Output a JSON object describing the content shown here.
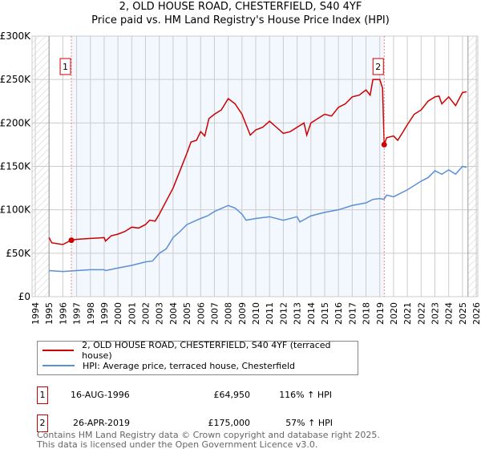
{
  "chart_data": {
    "type": "line",
    "title": "2, OLD HOUSE ROAD, CHESTERFIELD, S40 4YF",
    "subtitle": "Price paid vs. HM Land Registry's House Price Index (HPI)",
    "xlim": [
      1994,
      2026
    ],
    "ylim": [
      0,
      300000
    ],
    "yticks": [
      0,
      50000,
      100000,
      150000,
      200000,
      250000,
      300000
    ],
    "ytick_labels": [
      "£0",
      "£50K",
      "£100K",
      "£150K",
      "£200K",
      "£250K",
      "£300K"
    ],
    "xticks": [
      1994,
      1995,
      1996,
      1997,
      1998,
      1999,
      2000,
      2001,
      2002,
      2003,
      2004,
      2005,
      2006,
      2007,
      2008,
      2009,
      2010,
      2011,
      2012,
      2013,
      2014,
      2015,
      2016,
      2017,
      2018,
      2019,
      2020,
      2021,
      2022,
      2023,
      2024,
      2025,
      2026
    ],
    "grid": true,
    "series": [
      {
        "name": "2, OLD HOUSE ROAD, CHESTERFIELD, S40 4YF (terraced house)",
        "color": "#cc0000",
        "points": [
          [
            1995,
            68
          ],
          [
            1995.2,
            62
          ],
          [
            1996,
            60
          ],
          [
            1996.6,
            65
          ],
          [
            1997,
            66
          ],
          [
            1998,
            67
          ],
          [
            1999,
            68
          ],
          [
            1999.1,
            64
          ],
          [
            1999.5,
            70
          ],
          [
            2000,
            72
          ],
          [
            2000.5,
            75
          ],
          [
            2001,
            80
          ],
          [
            2001.5,
            79
          ],
          [
            2002,
            83
          ],
          [
            2002.3,
            88
          ],
          [
            2002.7,
            87
          ],
          [
            2003,
            95
          ],
          [
            2003.5,
            110
          ],
          [
            2004,
            125
          ],
          [
            2004.5,
            145
          ],
          [
            2005,
            165
          ],
          [
            2005.3,
            178
          ],
          [
            2005.7,
            180
          ],
          [
            2006,
            190
          ],
          [
            2006.3,
            185
          ],
          [
            2006.6,
            205
          ],
          [
            2007,
            210
          ],
          [
            2007.5,
            215
          ],
          [
            2008,
            228
          ],
          [
            2008.5,
            222
          ],
          [
            2009,
            210
          ],
          [
            2009.3,
            198
          ],
          [
            2009.6,
            186
          ],
          [
            2010,
            192
          ],
          [
            2010.5,
            195
          ],
          [
            2011,
            202
          ],
          [
            2011.5,
            195
          ],
          [
            2012,
            188
          ],
          [
            2012.5,
            190
          ],
          [
            2013,
            195
          ],
          [
            2013.5,
            200
          ],
          [
            2013.7,
            186
          ],
          [
            2014,
            200
          ],
          [
            2014.5,
            205
          ],
          [
            2015,
            210
          ],
          [
            2015.5,
            208
          ],
          [
            2016,
            218
          ],
          [
            2016.5,
            222
          ],
          [
            2017,
            230
          ],
          [
            2017.5,
            232
          ],
          [
            2018,
            238
          ],
          [
            2018.3,
            232
          ],
          [
            2018.5,
            250
          ],
          [
            2019,
            250
          ],
          [
            2019.2,
            240
          ],
          [
            2019.32,
            175
          ],
          [
            2019.5,
            183
          ],
          [
            2020,
            185
          ],
          [
            2020.3,
            180
          ],
          [
            2020.7,
            190
          ],
          [
            2021,
            198
          ],
          [
            2021.5,
            210
          ],
          [
            2022,
            215
          ],
          [
            2022.5,
            225
          ],
          [
            2023,
            230
          ],
          [
            2023.3,
            231
          ],
          [
            2023.5,
            222
          ],
          [
            2024,
            230
          ],
          [
            2024.5,
            220
          ],
          [
            2025,
            235
          ],
          [
            2025.3,
            236
          ]
        ]
      },
      {
        "name": "HPI: Average price, terraced house, Chesterfield",
        "color": "#5b8fd6",
        "points": [
          [
            1995,
            30
          ],
          [
            1996,
            29
          ],
          [
            1997,
            30
          ],
          [
            1998,
            31
          ],
          [
            1999,
            31
          ],
          [
            1999.1,
            30
          ],
          [
            2000,
            33
          ],
          [
            2001,
            36
          ],
          [
            2002,
            40
          ],
          [
            2002.5,
            41
          ],
          [
            2003,
            50
          ],
          [
            2003.5,
            55
          ],
          [
            2004,
            68
          ],
          [
            2004.5,
            75
          ],
          [
            2005,
            83
          ],
          [
            2006,
            90
          ],
          [
            2006.5,
            93
          ],
          [
            2007,
            98
          ],
          [
            2008,
            105
          ],
          [
            2008.5,
            102
          ],
          [
            2009,
            95
          ],
          [
            2009.3,
            88
          ],
          [
            2010,
            90
          ],
          [
            2011,
            92
          ],
          [
            2012,
            88
          ],
          [
            2013,
            92
          ],
          [
            2013.2,
            86
          ],
          [
            2014,
            93
          ],
          [
            2015,
            97
          ],
          [
            2016,
            100
          ],
          [
            2017,
            105
          ],
          [
            2018,
            108
          ],
          [
            2018.5,
            112
          ],
          [
            2019,
            113
          ],
          [
            2019.3,
            112
          ],
          [
            2019.5,
            117
          ],
          [
            2020,
            115
          ],
          [
            2021,
            123
          ],
          [
            2022,
            133
          ],
          [
            2022.5,
            137
          ],
          [
            2023,
            145
          ],
          [
            2023.5,
            141
          ],
          [
            2024,
            146
          ],
          [
            2024.5,
            141
          ],
          [
            2025,
            150
          ],
          [
            2025.3,
            149
          ]
        ]
      }
    ],
    "point_units": "thousands GBP",
    "sales": [
      {
        "label": "1",
        "x": 1996.62,
        "y": 64950,
        "date": "16-AUG-1996",
        "price": "£64,950",
        "hpi": "116% ↑ HPI"
      },
      {
        "label": "2",
        "x": 2019.32,
        "y": 175000,
        "date": "26-APR-2019",
        "price": "£175,000",
        "hpi": "57% ↑ HPI"
      }
    ]
  },
  "footer": [
    "Contains HM Land Registry data © Crown copyright and database right 2025.",
    "This data is licensed under the Open Government Licence v3.0."
  ]
}
